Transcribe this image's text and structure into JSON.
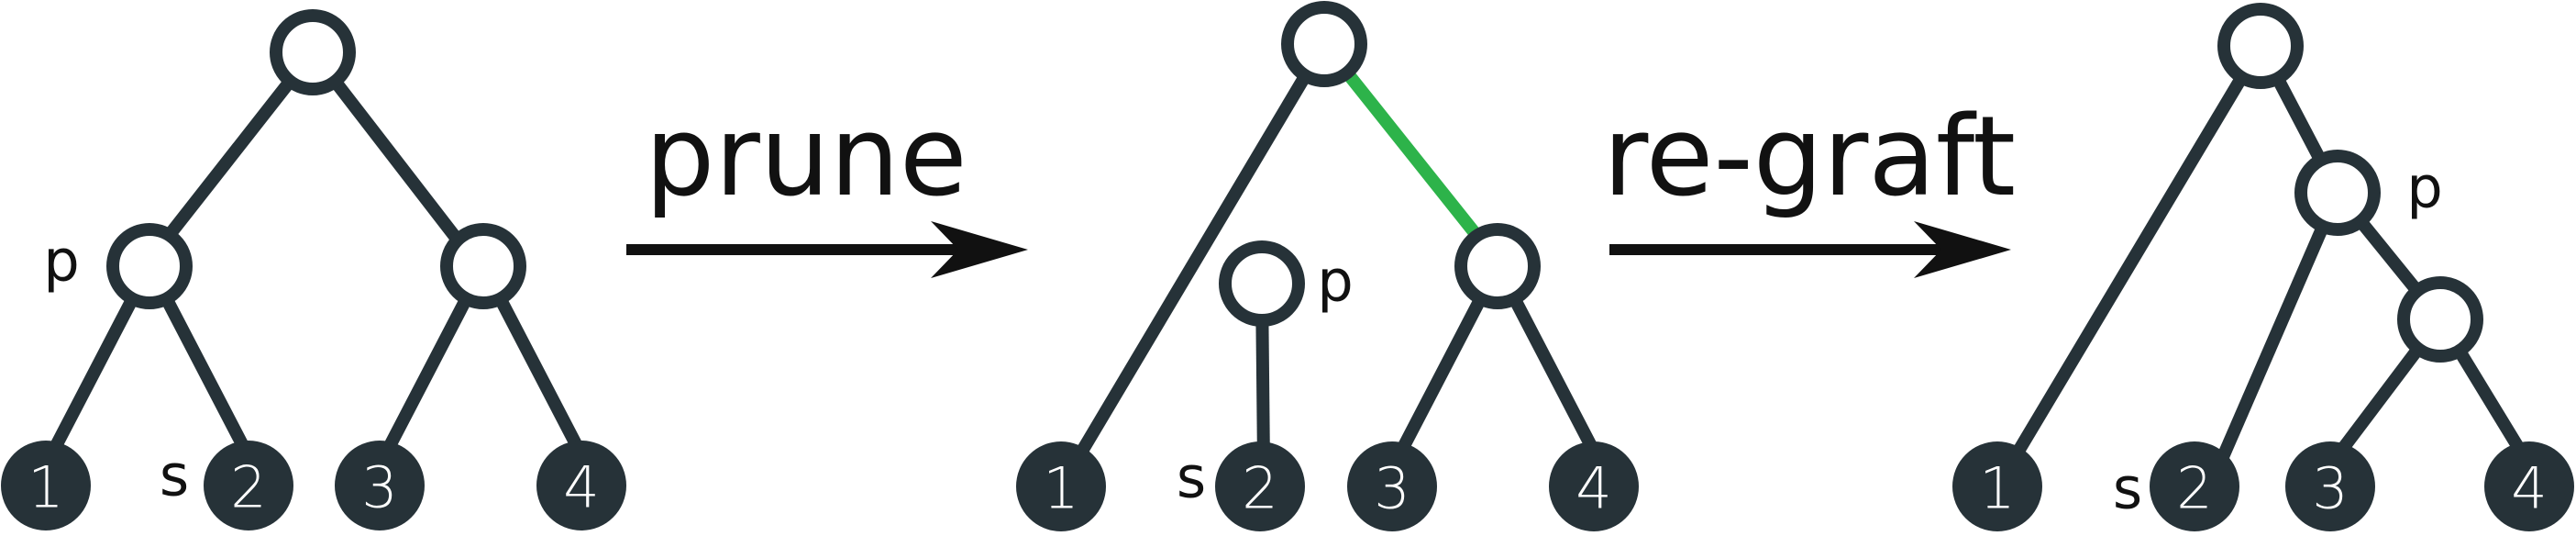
{
  "operations": {
    "prune": "prune",
    "regraft": "re-graft"
  },
  "labels": {
    "p": "p",
    "s": "s"
  },
  "leaves": [
    "1",
    "2",
    "3",
    "4"
  ],
  "colors": {
    "node": "#263238",
    "highlight_edge": "#2db34a",
    "text": "#111111"
  }
}
